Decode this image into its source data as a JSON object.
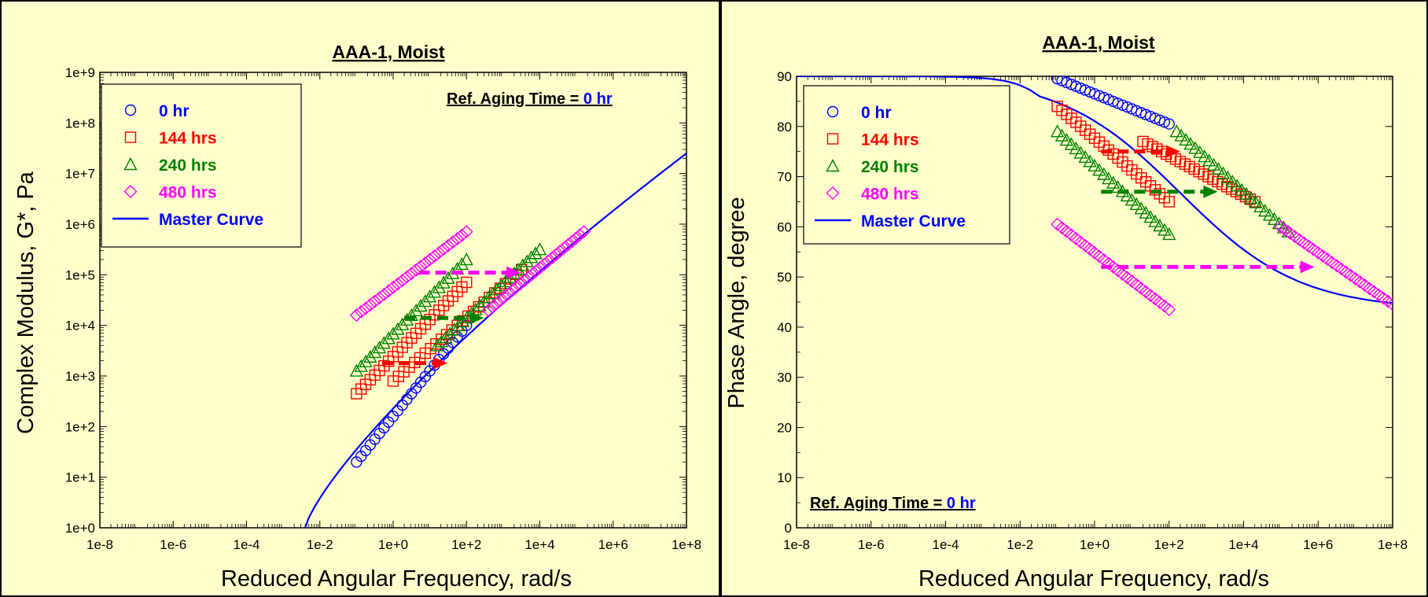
{
  "chart_data": [
    {
      "type": "scatter",
      "title": "AAA-1, Moist",
      "xlabel": "Reduced Angular Frequency, rad/s",
      "ylabel": "Complex Modulus, G*, Pa",
      "xscale": "log",
      "yscale": "log",
      "xlim": [
        1e-08,
        100000000.0
      ],
      "ylim": [
        1,
        1000000000.0
      ],
      "xticks": [
        "1e-8",
        "1e-6",
        "1e-4",
        "1e-2",
        "1e+0",
        "1e+2",
        "1e+4",
        "1e+6",
        "1e+8"
      ],
      "yticks": [
        "1e+0",
        "1e+1",
        "1e+2",
        "1e+3",
        "1e+4",
        "1e+5",
        "1e+6",
        "1e+7",
        "1e+8",
        "1e+9"
      ],
      "legend_position": "top-left",
      "annotation": {
        "prefix": "Ref. Aging Time = ",
        "value": "0 hr",
        "position": "top-right"
      },
      "series": [
        {
          "name": "0 hr",
          "marker": "circle",
          "color": "#0000ff",
          "x_log_range": [
            -1.0,
            2.0
          ],
          "y_log_range": [
            1.3,
            4.0
          ]
        },
        {
          "name": "144 hrs",
          "marker": "square",
          "color": "#ff0000",
          "x_log_range": [
            -1.0,
            2.0
          ],
          "y_log_range": [
            2.65,
            4.85
          ],
          "shifted_x_log_range": [
            0.0,
            3.5
          ],
          "shifted_y_log_range": [
            2.9,
            5.1
          ]
        },
        {
          "name": "240 hrs",
          "marker": "triangle",
          "color": "#008000",
          "x_log_range": [
            -1.0,
            2.0
          ],
          "y_log_range": [
            3.1,
            5.3
          ],
          "shifted_x_log_range": [
            1.2,
            4.0
          ],
          "shifted_y_log_range": [
            3.6,
            5.5
          ]
        },
        {
          "name": "480 hrs",
          "marker": "diamond",
          "color": "#ff00ff",
          "x_log_range": [
            -1.0,
            2.0
          ],
          "y_log_range": [
            4.2,
            5.85
          ],
          "shifted_x_log_range": [
            2.6,
            5.2
          ],
          "shifted_y_log_range": [
            4.3,
            5.85
          ]
        },
        {
          "name": "Master Curve",
          "marker": "line",
          "color": "#0000ff",
          "x_log_range": [
            -2.4,
            8.0
          ],
          "y_log_range": [
            0.0,
            7.4
          ]
        }
      ],
      "shift_arrows": [
        {
          "color": "#ff0000",
          "y": 1800,
          "x_from": 0.5,
          "x_to": 30
        },
        {
          "color": "#008000",
          "y": 14000,
          "x_from": 2,
          "x_to": 300
        },
        {
          "color": "#ff00ff",
          "y": 110000,
          "x_from": 5,
          "x_to": 3000
        }
      ]
    },
    {
      "type": "scatter",
      "title": "AAA-1, Moist",
      "xlabel": "Reduced Angular Frequency, rad/s",
      "ylabel": "Phase Angle, degree",
      "xscale": "log",
      "xlim": [
        1e-08,
        100000000.0
      ],
      "ylim": [
        0,
        90
      ],
      "xticks": [
        "1e-8",
        "1e-6",
        "1e-4",
        "1e-2",
        "1e+0",
        "1e+2",
        "1e+4",
        "1e+6",
        "1e+8"
      ],
      "yticks": [
        "0",
        "10",
        "20",
        "30",
        "40",
        "50",
        "60",
        "70",
        "80",
        "90"
      ],
      "legend_position": "top-left",
      "annotation": {
        "prefix": "Ref. Aging Time = ",
        "value": "0 hr",
        "position": "bottom-left"
      },
      "series": [
        {
          "name": "0 hr",
          "marker": "circle",
          "color": "#0000ff",
          "x_log_range": [
            -1.0,
            2.0
          ],
          "y_range": [
            89.5,
            80.5
          ]
        },
        {
          "name": "144 hrs",
          "marker": "square",
          "color": "#ff0000",
          "x_log_range": [
            -1.0,
            2.0
          ],
          "y_range": [
            84,
            65
          ],
          "shifted_x_log_range": [
            1.3,
            4.3
          ],
          "shifted_y_range": [
            77,
            65
          ]
        },
        {
          "name": "240 hrs",
          "marker": "triangle",
          "color": "#008000",
          "x_log_range": [
            -1.0,
            2.0
          ],
          "y_range": [
            79,
            58.5
          ],
          "shifted_x_log_range": [
            2.2,
            5.2
          ],
          "shifted_y_range": [
            79,
            59
          ]
        },
        {
          "name": "480 hrs",
          "marker": "diamond",
          "color": "#ff00ff",
          "x_log_range": [
            -1.0,
            2.0
          ],
          "y_range": [
            60.5,
            43.5
          ],
          "shifted_x_log_range": [
            5.0,
            8.0
          ],
          "shifted_y_range": [
            60,
            44.5
          ]
        },
        {
          "name": "Master Curve",
          "marker": "line",
          "color": "#0000ff",
          "x_log_range": [
            -8,
            8
          ],
          "y_range": [
            90,
            43.5
          ]
        }
      ],
      "shift_arrows": [
        {
          "color": "#ff0000",
          "y": 75,
          "x_from": 1.5,
          "x_to": 200
        },
        {
          "color": "#008000",
          "y": 67,
          "x_from": 1.5,
          "x_to": 2000
        },
        {
          "color": "#ff00ff",
          "y": 52,
          "x_from": 1.5,
          "x_to": 800000
        }
      ]
    }
  ]
}
